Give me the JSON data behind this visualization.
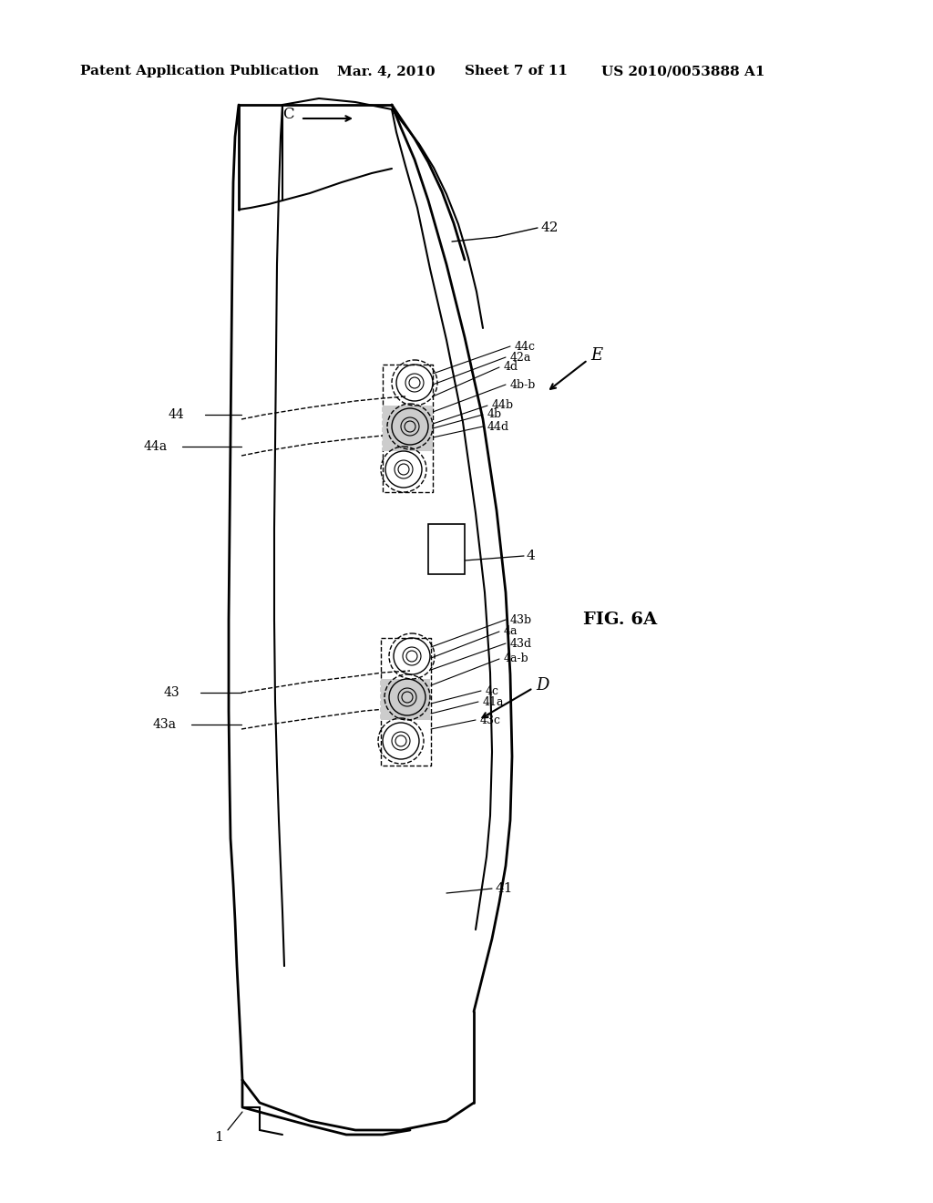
{
  "bg_color": "#ffffff",
  "title_line1": "Patent Application Publication",
  "title_line2": "Mar. 4, 2010",
  "title_line3": "Sheet 7 of 11",
  "title_line4": "US 2010/0053888 A1",
  "fig_label": "FIG. 6A"
}
